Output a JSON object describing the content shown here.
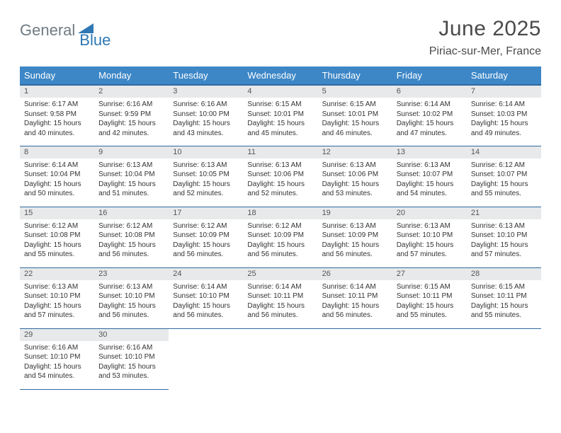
{
  "brand": {
    "text1": "General",
    "text2": "Blue",
    "logo_fill": "#2f78b5"
  },
  "header": {
    "title": "June 2025",
    "location": "Piriac-sur-Mer, France"
  },
  "colors": {
    "dow_bg": "#3d87c7",
    "dow_border": "#2f6aa0",
    "daynum_bg": "#e7e9ea",
    "text_muted": "#6f7b82"
  },
  "days_of_week": [
    "Sunday",
    "Monday",
    "Tuesday",
    "Wednesday",
    "Thursday",
    "Friday",
    "Saturday"
  ],
  "weeks": [
    [
      {
        "n": "1",
        "sr": "Sunrise: 6:17 AM",
        "ss": "Sunset: 9:58 PM",
        "d1": "Daylight: 15 hours",
        "d2": "and 40 minutes."
      },
      {
        "n": "2",
        "sr": "Sunrise: 6:16 AM",
        "ss": "Sunset: 9:59 PM",
        "d1": "Daylight: 15 hours",
        "d2": "and 42 minutes."
      },
      {
        "n": "3",
        "sr": "Sunrise: 6:16 AM",
        "ss": "Sunset: 10:00 PM",
        "d1": "Daylight: 15 hours",
        "d2": "and 43 minutes."
      },
      {
        "n": "4",
        "sr": "Sunrise: 6:15 AM",
        "ss": "Sunset: 10:01 PM",
        "d1": "Daylight: 15 hours",
        "d2": "and 45 minutes."
      },
      {
        "n": "5",
        "sr": "Sunrise: 6:15 AM",
        "ss": "Sunset: 10:01 PM",
        "d1": "Daylight: 15 hours",
        "d2": "and 46 minutes."
      },
      {
        "n": "6",
        "sr": "Sunrise: 6:14 AM",
        "ss": "Sunset: 10:02 PM",
        "d1": "Daylight: 15 hours",
        "d2": "and 47 minutes."
      },
      {
        "n": "7",
        "sr": "Sunrise: 6:14 AM",
        "ss": "Sunset: 10:03 PM",
        "d1": "Daylight: 15 hours",
        "d2": "and 49 minutes."
      }
    ],
    [
      {
        "n": "8",
        "sr": "Sunrise: 6:14 AM",
        "ss": "Sunset: 10:04 PM",
        "d1": "Daylight: 15 hours",
        "d2": "and 50 minutes."
      },
      {
        "n": "9",
        "sr": "Sunrise: 6:13 AM",
        "ss": "Sunset: 10:04 PM",
        "d1": "Daylight: 15 hours",
        "d2": "and 51 minutes."
      },
      {
        "n": "10",
        "sr": "Sunrise: 6:13 AM",
        "ss": "Sunset: 10:05 PM",
        "d1": "Daylight: 15 hours",
        "d2": "and 52 minutes."
      },
      {
        "n": "11",
        "sr": "Sunrise: 6:13 AM",
        "ss": "Sunset: 10:06 PM",
        "d1": "Daylight: 15 hours",
        "d2": "and 52 minutes."
      },
      {
        "n": "12",
        "sr": "Sunrise: 6:13 AM",
        "ss": "Sunset: 10:06 PM",
        "d1": "Daylight: 15 hours",
        "d2": "and 53 minutes."
      },
      {
        "n": "13",
        "sr": "Sunrise: 6:13 AM",
        "ss": "Sunset: 10:07 PM",
        "d1": "Daylight: 15 hours",
        "d2": "and 54 minutes."
      },
      {
        "n": "14",
        "sr": "Sunrise: 6:12 AM",
        "ss": "Sunset: 10:07 PM",
        "d1": "Daylight: 15 hours",
        "d2": "and 55 minutes."
      }
    ],
    [
      {
        "n": "15",
        "sr": "Sunrise: 6:12 AM",
        "ss": "Sunset: 10:08 PM",
        "d1": "Daylight: 15 hours",
        "d2": "and 55 minutes."
      },
      {
        "n": "16",
        "sr": "Sunrise: 6:12 AM",
        "ss": "Sunset: 10:08 PM",
        "d1": "Daylight: 15 hours",
        "d2": "and 56 minutes."
      },
      {
        "n": "17",
        "sr": "Sunrise: 6:12 AM",
        "ss": "Sunset: 10:09 PM",
        "d1": "Daylight: 15 hours",
        "d2": "and 56 minutes."
      },
      {
        "n": "18",
        "sr": "Sunrise: 6:12 AM",
        "ss": "Sunset: 10:09 PM",
        "d1": "Daylight: 15 hours",
        "d2": "and 56 minutes."
      },
      {
        "n": "19",
        "sr": "Sunrise: 6:13 AM",
        "ss": "Sunset: 10:09 PM",
        "d1": "Daylight: 15 hours",
        "d2": "and 56 minutes."
      },
      {
        "n": "20",
        "sr": "Sunrise: 6:13 AM",
        "ss": "Sunset: 10:10 PM",
        "d1": "Daylight: 15 hours",
        "d2": "and 57 minutes."
      },
      {
        "n": "21",
        "sr": "Sunrise: 6:13 AM",
        "ss": "Sunset: 10:10 PM",
        "d1": "Daylight: 15 hours",
        "d2": "and 57 minutes."
      }
    ],
    [
      {
        "n": "22",
        "sr": "Sunrise: 6:13 AM",
        "ss": "Sunset: 10:10 PM",
        "d1": "Daylight: 15 hours",
        "d2": "and 57 minutes."
      },
      {
        "n": "23",
        "sr": "Sunrise: 6:13 AM",
        "ss": "Sunset: 10:10 PM",
        "d1": "Daylight: 15 hours",
        "d2": "and 56 minutes."
      },
      {
        "n": "24",
        "sr": "Sunrise: 6:14 AM",
        "ss": "Sunset: 10:10 PM",
        "d1": "Daylight: 15 hours",
        "d2": "and 56 minutes."
      },
      {
        "n": "25",
        "sr": "Sunrise: 6:14 AM",
        "ss": "Sunset: 10:11 PM",
        "d1": "Daylight: 15 hours",
        "d2": "and 56 minutes."
      },
      {
        "n": "26",
        "sr": "Sunrise: 6:14 AM",
        "ss": "Sunset: 10:11 PM",
        "d1": "Daylight: 15 hours",
        "d2": "and 56 minutes."
      },
      {
        "n": "27",
        "sr": "Sunrise: 6:15 AM",
        "ss": "Sunset: 10:11 PM",
        "d1": "Daylight: 15 hours",
        "d2": "and 55 minutes."
      },
      {
        "n": "28",
        "sr": "Sunrise: 6:15 AM",
        "ss": "Sunset: 10:11 PM",
        "d1": "Daylight: 15 hours",
        "d2": "and 55 minutes."
      }
    ],
    [
      {
        "n": "29",
        "sr": "Sunrise: 6:16 AM",
        "ss": "Sunset: 10:10 PM",
        "d1": "Daylight: 15 hours",
        "d2": "and 54 minutes."
      },
      {
        "n": "30",
        "sr": "Sunrise: 6:16 AM",
        "ss": "Sunset: 10:10 PM",
        "d1": "Daylight: 15 hours",
        "d2": "and 53 minutes."
      },
      null,
      null,
      null,
      null,
      null
    ]
  ]
}
